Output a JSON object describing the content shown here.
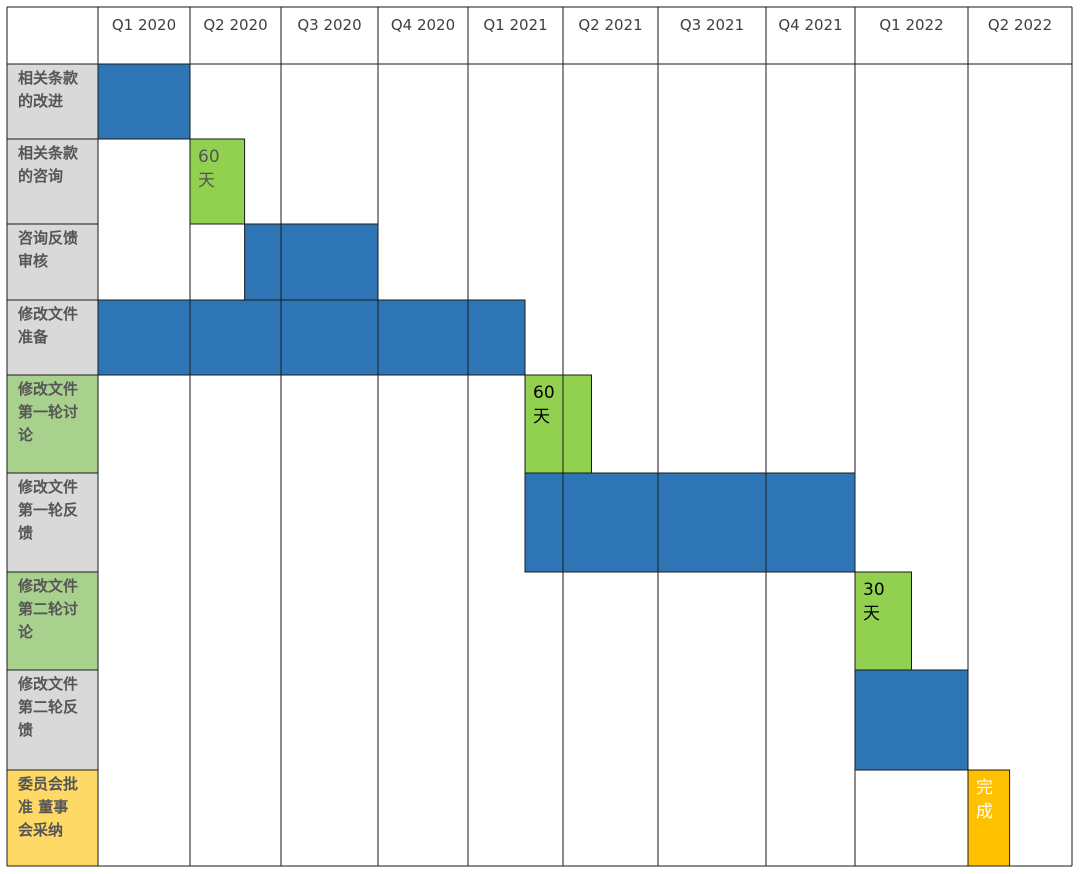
{
  "chart_data": {
    "type": "gantt",
    "columns": [
      "Q1 2020",
      "Q2 2020",
      "Q3 2020",
      "Q4 2020",
      "Q1 2021",
      "Q2 2021",
      "Q3 2021",
      "Q4 2021",
      "Q1 2022",
      "Q2 2022"
    ],
    "colors": {
      "blue": "#2e75b6",
      "green": "#92d050",
      "light_green": "#a9d18e",
      "gray": "#d9d9d9",
      "light_yellow": "#ffd966",
      "orange": "#ffc000"
    },
    "tasks": [
      {
        "label_lines": [
          "相关条款",
          "的改进"
        ],
        "label_color": "gray"
      },
      {
        "label_lines": [
          "相关条款",
          "的咨询"
        ],
        "label_color": "gray"
      },
      {
        "label_lines": [
          "咨询反馈",
          "审核"
        ],
        "label_color": "gray"
      },
      {
        "label_lines": [
          "修改文件",
          "准备"
        ],
        "label_color": "gray"
      },
      {
        "label_lines": [
          "修改文件",
          "第一轮讨",
          "论"
        ],
        "label_color": "light_green"
      },
      {
        "label_lines": [
          "修改文件",
          "第一轮反",
          "馈"
        ],
        "label_color": "gray"
      },
      {
        "label_lines": [
          "修改文件",
          "第二轮讨",
          "论"
        ],
        "label_color": "light_green"
      },
      {
        "label_lines": [
          "修改文件",
          "第二轮反",
          "馈"
        ],
        "label_color": "gray"
      },
      {
        "label_lines": [
          "委员会批",
          "准 董事",
          "会采纳"
        ],
        "label_color": "light_yellow"
      }
    ],
    "bars": [
      {
        "task": 0,
        "start": 0,
        "end": 1,
        "color": "blue",
        "text_lines": []
      },
      {
        "task": 1,
        "start": 1,
        "end": 1.6,
        "color": "green",
        "text_lines": [
          "60",
          "天"
        ],
        "text_color": "#555555"
      },
      {
        "task": 2,
        "start": 1.6,
        "end": 2,
        "color": "blue",
        "text_lines": []
      },
      {
        "task": 2,
        "start": 2,
        "end": 3,
        "color": "blue",
        "text_lines": []
      },
      {
        "task": 3,
        "start": 0,
        "end": 4.6,
        "color": "blue",
        "text_lines": []
      },
      {
        "task": 4,
        "start": 4.6,
        "end": 5.3,
        "color": "green",
        "text_lines": [
          "60",
          "天"
        ],
        "text_color": "#000000"
      },
      {
        "task": 5,
        "start": 4.6,
        "end": 5,
        "color": "blue",
        "text_lines": []
      },
      {
        "task": 5,
        "start": 5,
        "end": 8,
        "color": "blue",
        "text_lines": []
      },
      {
        "task": 6,
        "start": 8,
        "end": 8.5,
        "color": "green",
        "text_lines": [
          "30",
          "天"
        ],
        "text_color": "#000000"
      },
      {
        "task": 7,
        "start": 8,
        "end": 9,
        "color": "blue",
        "text_lines": []
      },
      {
        "task": 8,
        "start": 9,
        "end": 9.4,
        "color": "orange",
        "text_lines": [
          "完",
          "成"
        ],
        "text_color": "#ffffff"
      }
    ]
  }
}
